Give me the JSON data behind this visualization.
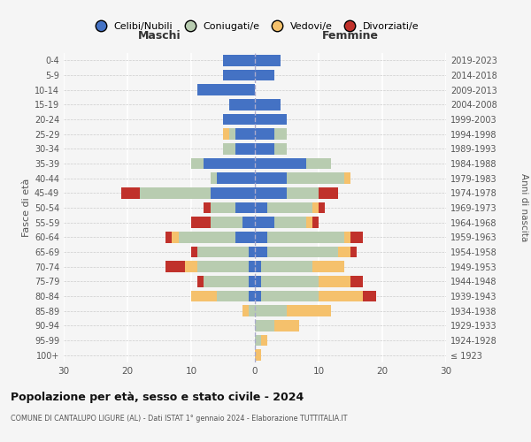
{
  "age_groups": [
    "100+",
    "95-99",
    "90-94",
    "85-89",
    "80-84",
    "75-79",
    "70-74",
    "65-69",
    "60-64",
    "55-59",
    "50-54",
    "45-49",
    "40-44",
    "35-39",
    "30-34",
    "25-29",
    "20-24",
    "15-19",
    "10-14",
    "5-9",
    "0-4"
  ],
  "birth_years": [
    "≤ 1923",
    "1924-1928",
    "1929-1933",
    "1934-1938",
    "1939-1943",
    "1944-1948",
    "1949-1953",
    "1954-1958",
    "1959-1963",
    "1964-1968",
    "1969-1973",
    "1974-1978",
    "1979-1983",
    "1984-1988",
    "1989-1993",
    "1994-1998",
    "1999-2003",
    "2004-2008",
    "2009-2013",
    "2014-2018",
    "2019-2023"
  ],
  "colors": {
    "celibe": "#4472C4",
    "coniugato": "#B8CCB0",
    "vedovo": "#F5C16C",
    "divorziato": "#C0312B"
  },
  "maschi": {
    "celibe": [
      0,
      0,
      0,
      0,
      1,
      1,
      1,
      1,
      3,
      2,
      3,
      7,
      6,
      8,
      3,
      3,
      5,
      4,
      9,
      5,
      5
    ],
    "coniugato": [
      0,
      0,
      0,
      1,
      5,
      7,
      8,
      8,
      9,
      5,
      4,
      11,
      1,
      2,
      2,
      1,
      0,
      0,
      0,
      0,
      0
    ],
    "vedovo": [
      0,
      0,
      0,
      1,
      4,
      0,
      2,
      0,
      1,
      0,
      0,
      0,
      0,
      0,
      0,
      1,
      0,
      0,
      0,
      0,
      0
    ],
    "divorziato": [
      0,
      0,
      0,
      0,
      0,
      1,
      3,
      1,
      1,
      3,
      1,
      3,
      0,
      0,
      0,
      0,
      0,
      0,
      0,
      0,
      0
    ]
  },
  "femmine": {
    "celibe": [
      0,
      0,
      0,
      0,
      1,
      1,
      1,
      2,
      2,
      3,
      2,
      5,
      5,
      8,
      3,
      3,
      5,
      4,
      0,
      3,
      4
    ],
    "coniugato": [
      0,
      1,
      3,
      5,
      9,
      9,
      8,
      11,
      12,
      5,
      7,
      5,
      9,
      4,
      2,
      2,
      0,
      0,
      0,
      0,
      0
    ],
    "vedovo": [
      1,
      1,
      4,
      7,
      7,
      5,
      5,
      2,
      1,
      1,
      1,
      0,
      1,
      0,
      0,
      0,
      0,
      0,
      0,
      0,
      0
    ],
    "divorziato": [
      0,
      0,
      0,
      0,
      2,
      2,
      0,
      1,
      2,
      1,
      1,
      3,
      0,
      0,
      0,
      0,
      0,
      0,
      0,
      0,
      0
    ]
  },
  "title": "Popolazione per età, sesso e stato civile - 2024",
  "subtitle": "COMUNE DI CANTALUPO LIGURE (AL) - Dati ISTAT 1° gennaio 2024 - Elaborazione TUTTITALIA.IT",
  "xlim": 30,
  "legend_labels": [
    "Celibi/Nubili",
    "Coniugati/e",
    "Vedovi/e",
    "Divorziati/e"
  ],
  "ylabel_left": "Fasce di età",
  "ylabel_right": "Anni di nascita",
  "xlabel_left": "Maschi",
  "xlabel_right": "Femmine",
  "bg_color": "#F5F5F5"
}
